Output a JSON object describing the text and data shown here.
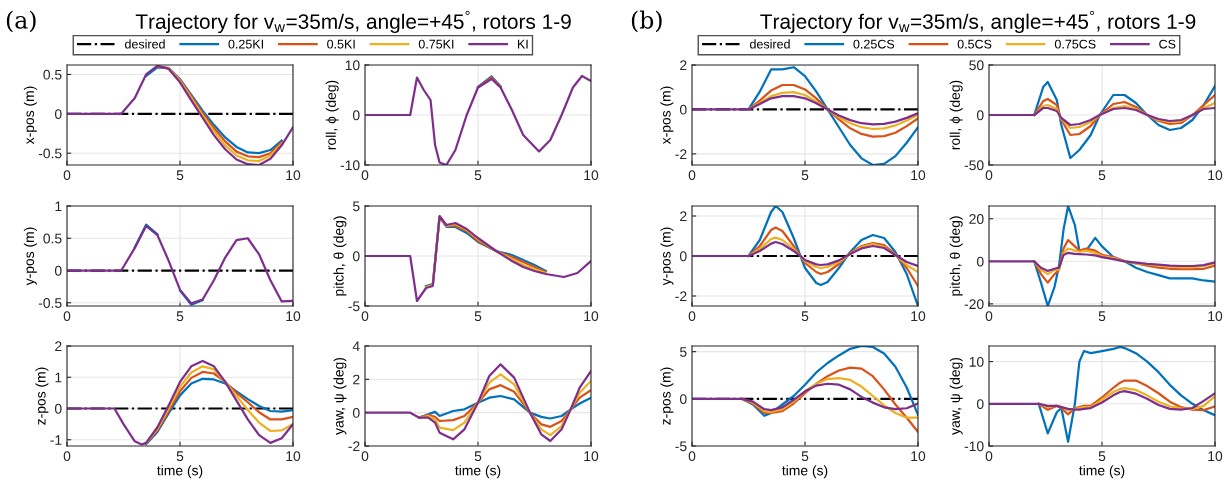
{
  "chart_data": [
    {
      "type": "line",
      "title": "Trajectory for v$_{w}$=35m/s, angle=+45$^{°}$, rotors 1-9",
      "annotations": [
        "(a)"
      ],
      "ylabel": "x-pos (m)",
      "legend": "top",
      "grid": true,
      "xlim": [
        0,
        10
      ],
      "xticks": [
        0,
        5,
        10
      ],
      "ylim": [
        -0.65,
        0.62
      ],
      "yticks": [
        -0.5,
        0,
        0.5
      ],
      "x": [
        0,
        2.4,
        3,
        3.5,
        4,
        4.5,
        5,
        5.5,
        6,
        6.5,
        7,
        7.5,
        8,
        8.5,
        9,
        9.5,
        10
      ],
      "series": [
        {
          "name": "desired",
          "color": "#000000",
          "line_style": "dashdot",
          "values": [
            0,
            0,
            0,
            0,
            0,
            0,
            0,
            0,
            0,
            0,
            0,
            0,
            0,
            0,
            0,
            0,
            0
          ]
        },
        {
          "name": "0.25KI",
          "color": "#0072bd",
          "values": [
            null,
            null,
            null,
            0.48,
            0.59,
            0.58,
            0.44,
            0.24,
            0.04,
            -0.14,
            -0.3,
            -0.42,
            -0.49,
            -0.5,
            -0.46,
            -0.34,
            null
          ]
        },
        {
          "name": "0.5KI",
          "color": "#d95319",
          "values": [
            null,
            null,
            null,
            null,
            0.6,
            0.58,
            0.43,
            0.22,
            0.01,
            -0.18,
            -0.35,
            -0.48,
            -0.54,
            -0.55,
            -0.5,
            -0.36,
            null
          ]
        },
        {
          "name": "0.75KI",
          "color": "#edb120",
          "values": [
            null,
            null,
            null,
            null,
            null,
            0.58,
            0.42,
            0.2,
            -0.02,
            -0.22,
            -0.4,
            -0.53,
            -0.59,
            -0.6,
            -0.53,
            -0.38,
            null
          ]
        },
        {
          "name": "KI",
          "color": "#7e2f8e",
          "values": [
            0,
            0,
            0.2,
            0.5,
            0.61,
            0.57,
            0.4,
            0.17,
            -0.05,
            -0.27,
            -0.45,
            -0.58,
            -0.64,
            -0.65,
            -0.57,
            -0.4,
            -0.17
          ]
        }
      ]
    },
    {
      "type": "line",
      "ylabel": "roll, ϕ (deg)",
      "grid": true,
      "xlim": [
        0,
        10
      ],
      "xticks": [
        0,
        5,
        10
      ],
      "ylim": [
        -10,
        10
      ],
      "yticks": [
        -10,
        0,
        10
      ],
      "x": [
        0,
        2,
        2.3,
        2.6,
        2.9,
        3.1,
        3.3,
        3.6,
        4,
        4.5,
        5,
        5.6,
        6,
        6.5,
        7,
        7.7,
        8.2,
        8.7,
        9.2,
        9.6,
        10
      ],
      "series": [
        {
          "color": "#0072bd",
          "values": [
            null,
            null,
            null,
            null,
            null,
            null,
            null,
            null,
            null,
            null,
            5.6,
            7.7,
            5.7,
            null,
            null,
            null,
            null,
            null,
            null,
            null,
            null
          ]
        },
        {
          "color": "#d95319",
          "values": [
            null,
            null,
            null,
            null,
            null,
            null,
            null,
            null,
            null,
            null,
            5.5,
            7.5,
            5.6,
            null,
            null,
            null,
            null,
            null,
            null,
            null,
            null
          ]
        },
        {
          "color": "#edb120",
          "values": [
            null,
            null,
            null,
            null,
            null,
            null,
            null,
            null,
            null,
            null,
            null,
            null,
            null,
            null,
            null,
            null,
            null,
            null,
            null,
            null,
            null
          ]
        },
        {
          "color": "#7e2f8e",
          "values": [
            0,
            0,
            7.5,
            5,
            3,
            -6,
            -9.5,
            -10,
            -7,
            0,
            5.5,
            7.2,
            5.5,
            1,
            -4,
            -7.3,
            -5,
            0,
            5.5,
            7.8,
            6.8
          ]
        }
      ]
    },
    {
      "type": "line",
      "ylabel": "y-pos (m)",
      "grid": true,
      "xlim": [
        0,
        10
      ],
      "xticks": [
        0,
        5,
        10
      ],
      "ylim": [
        -0.55,
        1
      ],
      "yticks": [
        -0.5,
        0,
        0.5,
        1
      ],
      "x": [
        0,
        2.4,
        3,
        3.5,
        4,
        4.5,
        5,
        5.5,
        6,
        6.5,
        7,
        7.5,
        8,
        8.5,
        9,
        9.5,
        10
      ],
      "series": [
        {
          "color": "#000000",
          "line_style": "dashdot",
          "values": [
            0,
            0,
            0,
            0,
            0,
            0,
            0,
            0,
            0,
            0,
            0,
            0,
            0,
            0,
            0,
            0,
            0
          ]
        },
        {
          "color": "#0072bd",
          "values": [
            null,
            null,
            0.36,
            0.71,
            0.56,
            null,
            -0.31,
            -0.53,
            -0.46,
            null,
            null,
            null,
            null,
            null,
            null,
            null,
            null
          ]
        },
        {
          "color": "#d95319",
          "values": [
            null,
            null,
            null,
            null,
            null,
            null,
            null,
            null,
            null,
            null,
            null,
            null,
            null,
            null,
            null,
            null,
            null
          ]
        },
        {
          "color": "#edb120",
          "values": [
            null,
            null,
            null,
            null,
            null,
            null,
            null,
            null,
            null,
            null,
            null,
            null,
            null,
            null,
            null,
            null,
            null
          ]
        },
        {
          "color": "#7e2f8e",
          "values": [
            0,
            0,
            0.35,
            0.69,
            0.55,
            0.15,
            -0.3,
            -0.51,
            -0.45,
            -0.15,
            0.2,
            0.47,
            0.5,
            0.25,
            -0.15,
            -0.48,
            -0.47
          ]
        }
      ]
    },
    {
      "type": "line",
      "ylabel": "pitch, θ (deg)",
      "grid": true,
      "xlim": [
        0,
        10
      ],
      "xticks": [
        0,
        5,
        10
      ],
      "ylim": [
        -5,
        5
      ],
      "yticks": [
        -5,
        0,
        5
      ],
      "x": [
        0,
        2,
        2.3,
        2.7,
        3.0,
        3.3,
        3.6,
        4,
        4.5,
        5,
        5.8,
        6.5,
        7,
        7.5,
        8,
        8.8,
        9.4,
        10
      ],
      "series": [
        {
          "color": "#0072bd",
          "values": [
            null,
            null,
            null,
            -3.0,
            -2.8,
            3.9,
            2.9,
            2.9,
            2.3,
            1.4,
            0.5,
            0.1,
            -0.4,
            -0.9,
            -1.5,
            null,
            null,
            null
          ]
        },
        {
          "color": "#d95319",
          "values": [
            null,
            null,
            null,
            -3.1,
            -2.9,
            3.9,
            3.0,
            3.0,
            2.5,
            1.5,
            0.5,
            -0.1,
            -0.6,
            -1.1,
            -1.6,
            null,
            null,
            null
          ]
        },
        {
          "color": "#edb120",
          "values": [
            null,
            null,
            null,
            -3.1,
            -2.9,
            4,
            3.0,
            3.2,
            2.6,
            1.7,
            0.5,
            -0.3,
            -0.9,
            -1.3,
            -1.7,
            null,
            null,
            null
          ]
        },
        {
          "color": "#7e2f8e",
          "values": [
            0,
            0,
            -4.5,
            -3.2,
            -3,
            4,
            3.1,
            3.3,
            2.7,
            1.8,
            0.5,
            -0.5,
            -1.1,
            -1.5,
            -1.8,
            -2.1,
            -1.7,
            -0.5
          ]
        }
      ]
    },
    {
      "type": "line",
      "xlabel": "time (s)",
      "ylabel": "z-pos (m)",
      "grid": true,
      "xlim": [
        0,
        10
      ],
      "xticks": [
        0,
        5,
        10
      ],
      "ylim": [
        -1.2,
        2
      ],
      "yticks": [
        -1,
        0,
        1,
        2
      ],
      "x": [
        0,
        2.1,
        2.5,
        3,
        3.3,
        3.5,
        4,
        4.5,
        5,
        5.5,
        6,
        6.5,
        7,
        7.5,
        8,
        8.5,
        9,
        9.5,
        10
      ],
      "series": [
        {
          "color": "#000000",
          "line_style": "dashdot",
          "values": [
            0,
            0,
            0,
            0,
            0,
            0,
            0,
            0,
            0,
            0,
            0,
            0,
            0,
            0,
            0,
            0,
            0,
            0,
            0
          ]
        },
        {
          "color": "#0072bd",
          "values": [
            null,
            null,
            null,
            null,
            null,
            -1.14,
            -0.75,
            -0.15,
            0.42,
            0.8,
            0.95,
            0.93,
            0.8,
            0.55,
            0.3,
            0.08,
            -0.08,
            -0.1,
            -0.05
          ]
        },
        {
          "color": "#d95319",
          "values": [
            null,
            null,
            null,
            null,
            null,
            -1.12,
            -0.7,
            -0.08,
            0.55,
            0.98,
            1.17,
            1.12,
            0.85,
            0.5,
            0.2,
            -0.12,
            -0.35,
            -0.35,
            -0.27
          ]
        },
        {
          "color": "#edb120",
          "values": [
            null,
            null,
            null,
            null,
            null,
            -1.1,
            -0.65,
            0.0,
            0.7,
            1.15,
            1.35,
            1.25,
            0.85,
            0.4,
            -0.05,
            -0.45,
            -0.72,
            -0.7,
            -0.5
          ]
        },
        {
          "color": "#7e2f8e",
          "values": [
            0,
            0,
            -0.5,
            -1.05,
            -1.15,
            -1.1,
            -0.6,
            0.1,
            0.85,
            1.35,
            1.52,
            1.35,
            0.85,
            0.25,
            -0.35,
            -0.85,
            -1.1,
            -0.95,
            -0.5
          ]
        }
      ]
    },
    {
      "type": "line",
      "xlabel": "time (s)",
      "ylabel": "yaw, ψ (deg)",
      "grid": true,
      "xlim": [
        0,
        10
      ],
      "xticks": [
        0,
        5,
        10
      ],
      "ylim": [
        -2,
        4
      ],
      "yticks": [
        -2,
        0,
        2,
        4
      ],
      "x": [
        0,
        2,
        2.4,
        2.8,
        3.1,
        3.3,
        3.9,
        4.4,
        5,
        5.5,
        6,
        6.6,
        7.3,
        7.8,
        8.2,
        8.7,
        9.1,
        9.5,
        10
      ],
      "series": [
        {
          "color": "#0072bd",
          "values": [
            null,
            null,
            -0.3,
            -0.1,
            0.05,
            -0.2,
            0.1,
            0.2,
            0.6,
            0.9,
            1.0,
            0.8,
            0,
            -0.25,
            -0.35,
            -0.2,
            0.2,
            0.55,
            0.9
          ]
        },
        {
          "color": "#d95319",
          "values": [
            null,
            null,
            -0.3,
            -0.15,
            -0.25,
            -0.5,
            -0.45,
            -0.2,
            0.6,
            1.4,
            1.65,
            1.25,
            0,
            -0.7,
            -0.85,
            -0.5,
            0.2,
            0.9,
            1.35
          ]
        },
        {
          "color": "#edb120",
          "values": [
            null,
            null,
            -0.3,
            -0.2,
            -0.4,
            -0.9,
            -1.05,
            -0.6,
            0.6,
            1.8,
            2.3,
            1.7,
            0,
            -1.0,
            -1.35,
            -0.8,
            0.2,
            1.2,
            1.9
          ]
        },
        {
          "color": "#7e2f8e",
          "values": [
            0,
            0,
            -0.3,
            -0.3,
            -0.6,
            -1.2,
            -1.6,
            -1.0,
            0.6,
            2.2,
            2.9,
            2.1,
            0,
            -1.3,
            -1.7,
            -1.0,
            0.2,
            1.5,
            2.5
          ]
        }
      ]
    },
    {
      "type": "line",
      "title": "Trajectory for v$_{w}$=35m/s, angle=+45$^{°}$, rotors 1-9",
      "annotations": [
        "(b)"
      ],
      "ylabel": "x-pos (m)",
      "legend": "top",
      "grid": true,
      "xlim": [
        0,
        10
      ],
      "xticks": [
        0,
        5,
        10
      ],
      "ylim": [
        -2.5,
        2
      ],
      "yticks": [
        -2,
        0,
        2
      ],
      "x": [
        0,
        2.5,
        3,
        3.5,
        4,
        4.5,
        5,
        5.5,
        6,
        6.5,
        7,
        7.5,
        8,
        8.5,
        9,
        9.5,
        10
      ],
      "series": [
        {
          "name": "desired",
          "color": "#000000",
          "line_style": "dashdot",
          "values": [
            0,
            0,
            0,
            0,
            0,
            0,
            0,
            0,
            0,
            0,
            0,
            0,
            0,
            0,
            0,
            0,
            0
          ]
        },
        {
          "name": "0.25CS",
          "color": "#0072bd",
          "values": [
            null,
            0,
            0.8,
            1.8,
            1.8,
            1.9,
            1.5,
            0.8,
            0,
            -0.8,
            -1.6,
            -2.2,
            -2.5,
            -2.45,
            -2.1,
            -1.5,
            -0.8
          ]
        },
        {
          "name": "0.5CS",
          "color": "#d95319",
          "values": [
            null,
            0,
            0.4,
            0.85,
            1.1,
            1.1,
            0.9,
            0.5,
            0,
            -0.45,
            -0.85,
            -1.1,
            -1.22,
            -1.2,
            -1.05,
            -0.75,
            -0.4
          ]
        },
        {
          "name": "0.75CS",
          "color": "#edb120",
          "values": [
            null,
            0,
            0.3,
            0.6,
            0.75,
            0.78,
            0.65,
            0.35,
            0,
            -0.35,
            -0.62,
            -0.8,
            -0.88,
            -0.85,
            -0.72,
            -0.5,
            -0.25
          ]
        },
        {
          "name": "CS",
          "color": "#7e2f8e",
          "values": [
            0,
            0,
            0.25,
            0.5,
            0.6,
            0.6,
            0.5,
            0.28,
            0,
            -0.27,
            -0.48,
            -0.62,
            -0.67,
            -0.65,
            -0.55,
            -0.38,
            -0.17
          ]
        }
      ]
    },
    {
      "type": "line",
      "ylabel": "roll, ϕ (deg)",
      "grid": true,
      "xlim": [
        0,
        10
      ],
      "xticks": [
        0,
        5,
        10
      ],
      "ylim": [
        -50,
        50
      ],
      "yticks": [
        -50,
        0,
        50
      ],
      "x": [
        0,
        2,
        2.4,
        2.6,
        3,
        3.2,
        3.6,
        4,
        4.5,
        4.9,
        5.5,
        6,
        6.5,
        7,
        7.5,
        8,
        8.5,
        9,
        9.5,
        10
      ],
      "series": [
        {
          "color": "#0072bd",
          "values": [
            null,
            0,
            28,
            33,
            15,
            -10,
            -43,
            -35,
            -20,
            0,
            20,
            20,
            12,
            0,
            -10,
            -15,
            -13,
            -5,
            10,
            29
          ]
        },
        {
          "color": "#d95319",
          "values": [
            null,
            0,
            14,
            16,
            10,
            -5,
            -20,
            -19,
            -11,
            0,
            11,
            13,
            8,
            0,
            -6,
            -9,
            -8,
            0,
            10,
            20
          ]
        },
        {
          "color": "#edb120",
          "values": [
            null,
            0,
            9,
            10,
            6,
            -4,
            -13,
            -12,
            -7,
            0,
            7,
            9,
            6,
            0,
            -5,
            -7,
            -6,
            0,
            7,
            12
          ]
        },
        {
          "color": "#7e2f8e",
          "values": [
            0,
            0,
            7,
            7,
            4,
            -3,
            -10,
            -9,
            -5,
            0,
            6,
            7,
            5,
            0,
            -4,
            -6,
            -5,
            0,
            6,
            7
          ]
        }
      ]
    },
    {
      "type": "line",
      "ylabel": "y-pos (m)",
      "grid": true,
      "xlim": [
        0,
        10
      ],
      "xticks": [
        0,
        5,
        10
      ],
      "ylim": [
        -2.5,
        2.5
      ],
      "yticks": [
        -2,
        0,
        2
      ],
      "x": [
        0,
        2.5,
        3,
        3.5,
        3.7,
        4,
        4.5,
        4.8,
        5,
        5.5,
        5.7,
        6,
        6.5,
        7,
        7.5,
        8,
        8.5,
        9,
        9.5,
        10
      ],
      "series": [
        {
          "color": "#000000",
          "line_style": "dashdot",
          "values": [
            0,
            0,
            0,
            0,
            0,
            0,
            0,
            0,
            0,
            0,
            0,
            0,
            0,
            0,
            0,
            0,
            0,
            0,
            0,
            0
          ]
        },
        {
          "color": "#0072bd",
          "values": [
            null,
            0,
            0.8,
            2.2,
            2.5,
            2.2,
            0.9,
            0,
            -0.6,
            -1.35,
            -1.45,
            -1.3,
            -0.6,
            0.2,
            0.8,
            1.05,
            0.9,
            0.2,
            -0.9,
            -2.5
          ]
        },
        {
          "color": "#d95319",
          "values": [
            null,
            0,
            0.5,
            1.3,
            1.42,
            1.25,
            0.5,
            0,
            -0.35,
            -0.8,
            -0.9,
            -0.8,
            -0.4,
            0.15,
            0.5,
            0.65,
            0.55,
            0.1,
            -0.6,
            -1.5
          ]
        },
        {
          "color": "#edb120",
          "values": [
            null,
            0,
            0.35,
            0.85,
            0.92,
            0.8,
            0.35,
            0,
            -0.25,
            -0.55,
            -0.6,
            -0.55,
            -0.3,
            0.1,
            0.45,
            0.6,
            0.45,
            0.05,
            -0.45,
            -0.8
          ]
        },
        {
          "color": "#7e2f8e",
          "values": [
            0,
            0,
            0.25,
            0.62,
            0.7,
            0.6,
            0.25,
            0,
            -0.2,
            -0.42,
            -0.45,
            -0.42,
            -0.22,
            0.1,
            0.38,
            0.5,
            0.4,
            0.05,
            -0.3,
            -0.5
          ]
        }
      ]
    },
    {
      "type": "line",
      "ylabel": "pitch, θ (deg)",
      "grid": true,
      "xlim": [
        0,
        10
      ],
      "xticks": [
        0,
        5,
        10
      ],
      "ylim": [
        -21,
        26
      ],
      "yticks": [
        -20,
        0,
        20
      ],
      "x": [
        0,
        2,
        2.3,
        2.6,
        2.9,
        3.1,
        3.3,
        3.5,
        3.8,
        4,
        4.3,
        4.7,
        5,
        5.5,
        6,
        6.5,
        7,
        7.5,
        8,
        8.5,
        9,
        9.5,
        10
      ],
      "series": [
        {
          "color": "#0072bd",
          "values": [
            null,
            0,
            -10,
            -21,
            -12,
            -2,
            15,
            26,
            17,
            5,
            5,
            11,
            7,
            2,
            0,
            -3,
            -5,
            -6.5,
            -8,
            -8,
            -8,
            -9,
            -9.5
          ]
        },
        {
          "color": "#d95319",
          "values": [
            null,
            0,
            -6,
            -10,
            -6,
            -4,
            6,
            10,
            7,
            5,
            6,
            5,
            3,
            2,
            0,
            -1,
            -2,
            -3,
            -3.5,
            -3.7,
            -3.7,
            -3.5,
            -2
          ]
        },
        {
          "color": "#edb120",
          "values": [
            null,
            0,
            -4,
            -6,
            -4,
            -4,
            4,
            6,
            5,
            4.5,
            5,
            4,
            2.5,
            1.5,
            0,
            -1,
            -1.5,
            -2,
            -2.5,
            -2.8,
            -2.8,
            -2.2,
            -1
          ]
        },
        {
          "color": "#7e2f8e",
          "values": [
            0,
            0,
            -3,
            -4.5,
            -3.5,
            -3,
            3,
            4,
            3.5,
            3.4,
            3.2,
            2.8,
            2,
            1,
            0,
            -0.6,
            -1.2,
            -1.6,
            -2,
            -2.2,
            -2.2,
            -1.8,
            -0.5
          ]
        }
      ]
    },
    {
      "type": "line",
      "xlabel": "time (s)",
      "ylabel": "z-pos (m)",
      "grid": true,
      "xlim": [
        0,
        10
      ],
      "xticks": [
        0,
        5,
        10
      ],
      "ylim": [
        -5,
        5.6
      ],
      "yticks": [
        -5,
        0,
        5
      ],
      "x": [
        0,
        2.2,
        2.7,
        3.2,
        3.5,
        4,
        4.5,
        5,
        5.5,
        6,
        6.5,
        7,
        7.5,
        8,
        8.5,
        9,
        9.5,
        10
      ],
      "series": [
        {
          "color": "#000000",
          "line_style": "dashdot",
          "values": [
            0,
            0,
            0,
            0,
            0,
            0,
            0,
            0,
            0,
            0,
            0,
            0,
            0,
            0,
            0,
            0,
            0,
            0
          ]
        },
        {
          "color": "#0072bd",
          "values": [
            null,
            0,
            -0.6,
            -1.8,
            -1.5,
            -0.6,
            0.3,
            1.5,
            2.8,
            3.8,
            4.6,
            5.3,
            5.6,
            5.5,
            4.8,
            3.4,
            1.2,
            -1.7
          ]
        },
        {
          "color": "#d95319",
          "values": [
            null,
            0,
            -0.5,
            -1.5,
            -1.5,
            -1.3,
            -0.5,
            0.6,
            1.6,
            2.4,
            3.0,
            3.3,
            3.2,
            2.4,
            1.0,
            -0.6,
            -2.0,
            -3.5
          ]
        },
        {
          "color": "#edb120",
          "values": [
            null,
            0,
            -0.4,
            -1.3,
            -1.4,
            -1.1,
            -0.3,
            0.8,
            1.6,
            2.1,
            2.2,
            2.0,
            1.3,
            0.3,
            -0.7,
            -1.5,
            -2.0,
            -2.0
          ]
        },
        {
          "color": "#7e2f8e",
          "values": [
            0,
            0,
            -0.3,
            -1.1,
            -1.2,
            -0.9,
            -0.1,
            0.8,
            1.4,
            1.6,
            1.5,
            1.0,
            0.2,
            -0.4,
            -0.9,
            -1.1,
            -1.0,
            -0.5
          ]
        }
      ]
    },
    {
      "type": "line",
      "xlabel": "time (s)",
      "ylabel": "yaw, ψ (deg)",
      "grid": true,
      "xlim": [
        0,
        10
      ],
      "xticks": [
        0,
        5,
        10
      ],
      "ylim": [
        -10,
        13.7
      ],
      "yticks": [
        -10,
        0,
        10
      ],
      "x": [
        0,
        2.2,
        2.6,
        3,
        3.2,
        3.5,
        3.8,
        4,
        4.2,
        4.5,
        5,
        5.5,
        5.8,
        6,
        6.5,
        7,
        7.5,
        8,
        8.5,
        9,
        9.5,
        10
      ],
      "series": [
        {
          "color": "#0072bd",
          "values": [
            null,
            0,
            -7,
            -2,
            -1,
            -9,
            0,
            10,
            12.5,
            12,
            12.5,
            13,
            13.5,
            13.2,
            12,
            10,
            7.5,
            4.5,
            2,
            0,
            -1.5,
            -2.7
          ]
        },
        {
          "color": "#d95319",
          "values": [
            null,
            0,
            -1.4,
            -0.5,
            -1,
            -2.5,
            -1,
            -0.8,
            -0.5,
            -0.5,
            1.5,
            3.8,
            5,
            5.5,
            5.5,
            4.2,
            2.5,
            0.5,
            -0.8,
            -1.4,
            -1.5,
            -0.6
          ]
        },
        {
          "color": "#edb120",
          "values": [
            null,
            0,
            -0.8,
            -0.4,
            -0.7,
            -1.5,
            -1.2,
            -1,
            -0.8,
            -0.8,
            1,
            2.8,
            3.5,
            3.7,
            3.3,
            2,
            0.5,
            -0.6,
            -1.1,
            -1.2,
            -0.5,
            1.8
          ]
        },
        {
          "color": "#7e2f8e",
          "values": [
            0,
            0,
            -0.5,
            -0.5,
            -0.8,
            -1.2,
            -1.4,
            -1.4,
            -1.2,
            -1,
            0.3,
            2,
            2.8,
            3,
            2.4,
            1.2,
            -0.3,
            -1.2,
            -1.4,
            -1,
            0.7,
            2.5
          ]
        }
      ]
    }
  ]
}
